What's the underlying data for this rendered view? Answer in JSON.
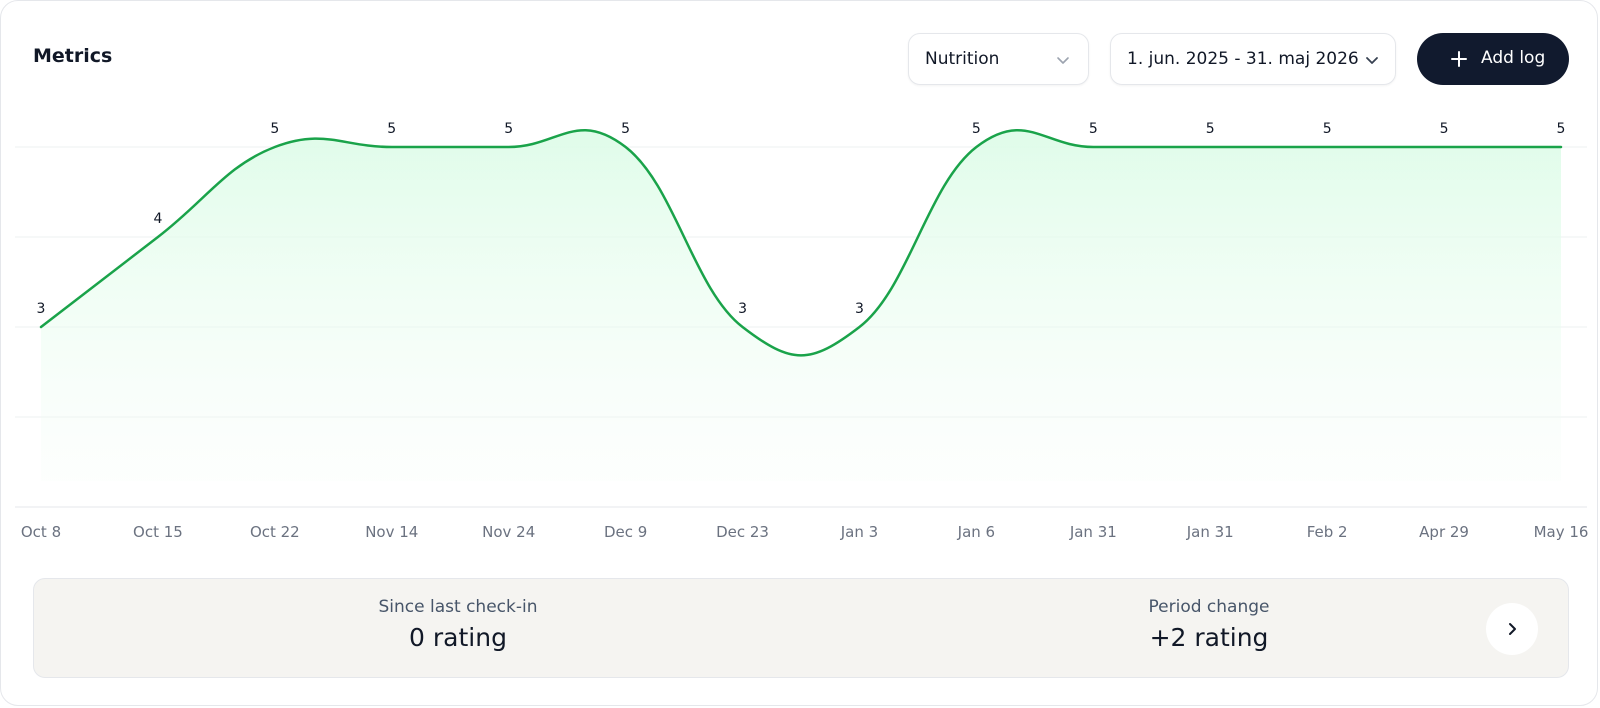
{
  "header": {
    "title": "Metrics",
    "category_select": {
      "value": "Nutrition"
    },
    "date_range_select": {
      "value": "1. jun. 2025 - 31. maj 2026"
    },
    "add_button_label": "Add log"
  },
  "chart_data": {
    "type": "area",
    "categories": [
      "Oct 8",
      "Oct 15",
      "Oct 22",
      "Nov 14",
      "Nov 24",
      "Dec 9",
      "Dec 23",
      "Jan 3",
      "Jan 6",
      "Jan 31",
      "Jan 31",
      "Feb 2",
      "Apr 29",
      "May 16"
    ],
    "values": [
      3,
      4,
      5,
      5,
      5,
      5,
      3,
      3,
      5,
      5,
      5,
      5,
      5,
      5
    ],
    "ylim": [
      1,
      5
    ],
    "grid": true,
    "colors": {
      "line": "#1aa34a",
      "fill": "#dcfce7"
    }
  },
  "summary": {
    "since_last": {
      "caption": "Since last check-in",
      "value": "0 rating"
    },
    "period_change": {
      "caption": "Period change",
      "value": "+2 rating"
    }
  }
}
